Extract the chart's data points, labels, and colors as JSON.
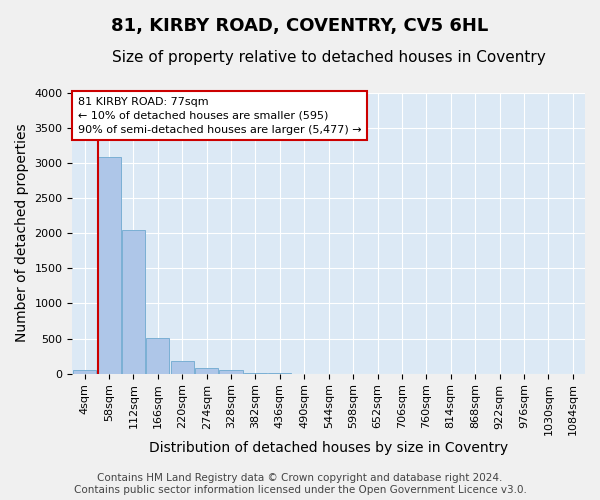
{
  "title": "81, KIRBY ROAD, COVENTRY, CV5 6HL",
  "subtitle": "Size of property relative to detached houses in Coventry",
  "xlabel": "Distribution of detached houses by size in Coventry",
  "ylabel": "Number of detached properties",
  "bin_labels": [
    "4sqm",
    "58sqm",
    "112sqm",
    "166sqm",
    "220sqm",
    "274sqm",
    "328sqm",
    "382sqm",
    "436sqm",
    "490sqm",
    "544sqm",
    "598sqm",
    "652sqm",
    "706sqm",
    "760sqm",
    "814sqm",
    "868sqm",
    "922sqm",
    "976sqm",
    "1030sqm",
    "1084sqm"
  ],
  "bar_heights": [
    60,
    3080,
    2040,
    515,
    175,
    85,
    55,
    10,
    5,
    0,
    0,
    0,
    0,
    0,
    0,
    0,
    0,
    0,
    0,
    0,
    0
  ],
  "bar_color": "#aec6e8",
  "bar_edge_color": "#7aafd4",
  "highlight_line_color": "#cc0000",
  "property_bin_index": 1,
  "ylim": [
    0,
    4000
  ],
  "yticks": [
    0,
    500,
    1000,
    1500,
    2000,
    2500,
    3000,
    3500,
    4000
  ],
  "annotation_text": "81 KIRBY ROAD: 77sqm\n← 10% of detached houses are smaller (595)\n90% of semi-detached houses are larger (5,477) →",
  "annotation_box_color": "#ffffff",
  "annotation_box_edge": "#cc0000",
  "bg_color": "#dce9f5",
  "fig_bg_color": "#f0f0f0",
  "footer_text": "Contains HM Land Registry data © Crown copyright and database right 2024.\nContains public sector information licensed under the Open Government Licence v3.0.",
  "grid_color": "#ffffff",
  "title_fontsize": 13,
  "subtitle_fontsize": 11,
  "axis_label_fontsize": 10,
  "tick_fontsize": 8,
  "footer_fontsize": 7.5
}
